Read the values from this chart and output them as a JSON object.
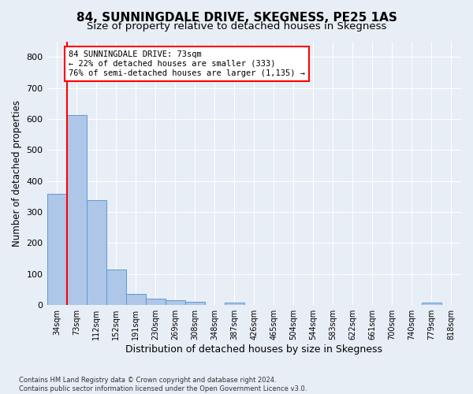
{
  "title": "84, SUNNINGDALE DRIVE, SKEGNESS, PE25 1AS",
  "subtitle": "Size of property relative to detached houses in Skegness",
  "xlabel": "Distribution of detached houses by size in Skegness",
  "ylabel": "Number of detached properties",
  "footer": "Contains HM Land Registry data © Crown copyright and database right 2024.\nContains public sector information licensed under the Open Government Licence v3.0.",
  "bar_labels": [
    "34sqm",
    "73sqm",
    "112sqm",
    "152sqm",
    "191sqm",
    "230sqm",
    "269sqm",
    "308sqm",
    "348sqm",
    "387sqm",
    "426sqm",
    "465sqm",
    "504sqm",
    "544sqm",
    "583sqm",
    "622sqm",
    "661sqm",
    "700sqm",
    "740sqm",
    "779sqm",
    "818sqm"
  ],
  "bar_heights": [
    358,
    612,
    338,
    115,
    36,
    20,
    15,
    10,
    0,
    8,
    0,
    0,
    0,
    0,
    0,
    0,
    0,
    0,
    0,
    8,
    0
  ],
  "bar_color": "#aec6e8",
  "bar_edge_color": "#5b9bd5",
  "vline_x_index": 1,
  "vline_color": "red",
  "annotation_text": "84 SUNNINGDALE DRIVE: 73sqm\n← 22% of detached houses are smaller (333)\n76% of semi-detached houses are larger (1,135) →",
  "annotation_box_color": "white",
  "annotation_box_edge": "red",
  "ylim": [
    0,
    850
  ],
  "yticks": [
    0,
    100,
    200,
    300,
    400,
    500,
    600,
    700,
    800
  ],
  "bg_color": "#e8eef5",
  "plot_bg_color": "#e8eef5",
  "grid_color": "white",
  "title_fontsize": 11,
  "subtitle_fontsize": 9.5,
  "label_fontsize": 8
}
